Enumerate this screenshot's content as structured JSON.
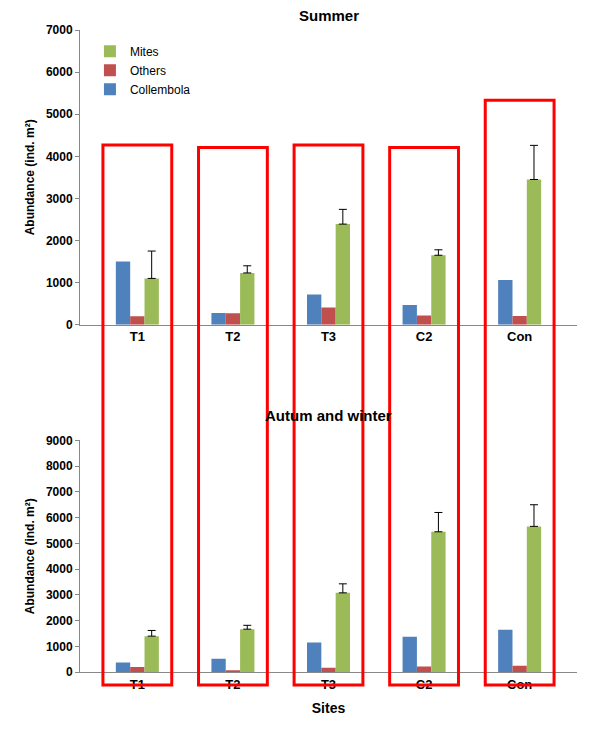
{
  "chart_data": [
    {
      "type": "bar",
      "stacked": true,
      "title": "Summer",
      "categories": [
        "T1",
        "T2",
        "T3",
        "C2",
        "Con"
      ],
      "ylabel": "Abundance (ind. m²)",
      "ylim": [
        0,
        7000
      ],
      "yticks": [
        0,
        1000,
        2000,
        3000,
        4000,
        5000,
        6000,
        7000
      ],
      "grid": false,
      "legend": "upper left",
      "series": [
        {
          "name": "Collembola",
          "color": "#4F81BD",
          "values": [
            1500,
            280,
            720,
            470,
            1060
          ]
        },
        {
          "name": "Others",
          "color": "#C0504D",
          "values": [
            200,
            270,
            410,
            220,
            210
          ]
        },
        {
          "name": "Mites",
          "color": "#9BBB59",
          "values": [
            1100,
            1230,
            2390,
            1650,
            3450
          ],
          "errors": [
            650,
            170,
            350,
            130,
            810
          ]
        }
      ]
    },
    {
      "type": "bar",
      "stacked": true,
      "title": "Autum and winter",
      "categories": [
        "T1",
        "T2",
        "T3",
        "C2",
        "Con"
      ],
      "xlabel": "Sites",
      "ylabel": "Abundance (ind. m²)",
      "ylim": [
        0,
        9000
      ],
      "yticks": [
        0,
        1000,
        2000,
        3000,
        4000,
        5000,
        6000,
        7000,
        8000,
        9000
      ],
      "grid": false,
      "series": [
        {
          "name": "Collembola",
          "color": "#4F81BD",
          "values": [
            380,
            520,
            1150,
            1380,
            1650
          ]
        },
        {
          "name": "Others",
          "color": "#C0504D",
          "values": [
            200,
            60,
            170,
            220,
            250
          ]
        },
        {
          "name": "Mites",
          "color": "#9BBB59",
          "values": [
            1400,
            1670,
            3080,
            5450,
            5660
          ],
          "errors": [
            220,
            150,
            350,
            750,
            840
          ]
        }
      ]
    }
  ]
}
